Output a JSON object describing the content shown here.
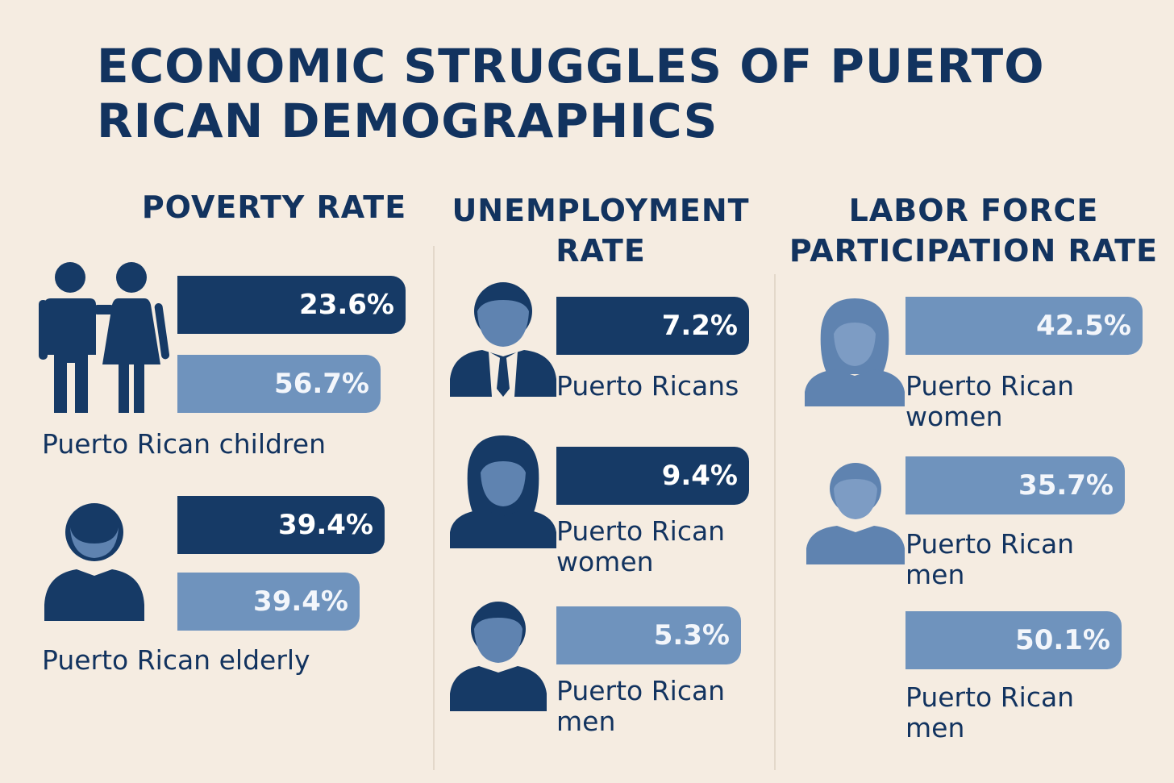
{
  "title": "ECONOMIC STRUGGLES OF PUERTO RICAN DEMOGRAPHICS",
  "columns": [
    {
      "heading": "POVERTY RATE"
    },
    {
      "heading": "UNEMPLOYMENT RATE"
    },
    {
      "heading": "LABOR FORCE PARTICIPATION RATE"
    }
  ],
  "colors": {
    "background": "#f5ece1",
    "dark": "#163a66",
    "light": "#6f93bd",
    "icon_dark": "#163a66",
    "icon_light": "#5f83b0"
  },
  "chart_data": [
    {
      "type": "bar",
      "title": "POVERTY RATE",
      "series": [
        {
          "label": "Puerto Rican children",
          "values": [
            23.6,
            56.7
          ],
          "value_labels": [
            "23.6%",
            "56.7%"
          ],
          "icon": "couple-icon"
        },
        {
          "label": "Puerto Rican elderly",
          "values": [
            39.4,
            39.4
          ],
          "value_labels": [
            "39.4%",
            "39.4%"
          ],
          "icon": "person-icon"
        }
      ]
    },
    {
      "type": "bar",
      "title": "UNEMPLOYMENT RATE",
      "series": [
        {
          "label": "Puerto Ricans",
          "values": [
            7.2
          ],
          "value_labels": [
            "7.2%"
          ],
          "icon": "businessman-icon"
        },
        {
          "label": "Puerto Rican women",
          "values": [
            9.4
          ],
          "value_labels": [
            "9.4%"
          ],
          "icon": "woman-icon"
        },
        {
          "label": "Puerto Rican men",
          "values": [
            5.3
          ],
          "value_labels": [
            "5.3%"
          ],
          "icon": "man-icon"
        }
      ]
    },
    {
      "type": "bar",
      "title": "LABOR FORCE PARTICIPATION RATE",
      "series": [
        {
          "label": "Puerto Rican women",
          "values": [
            42.5
          ],
          "value_labels": [
            "42.5%"
          ],
          "icon": "woman-icon"
        },
        {
          "label": "Puerto Rican men",
          "values": [
            35.7
          ],
          "value_labels": [
            "35.7%"
          ],
          "icon": "person-icon"
        },
        {
          "label": "Puerto Rican men",
          "values": [
            50.1
          ],
          "value_labels": [
            "50.1%"
          ],
          "icon": ""
        }
      ]
    }
  ]
}
